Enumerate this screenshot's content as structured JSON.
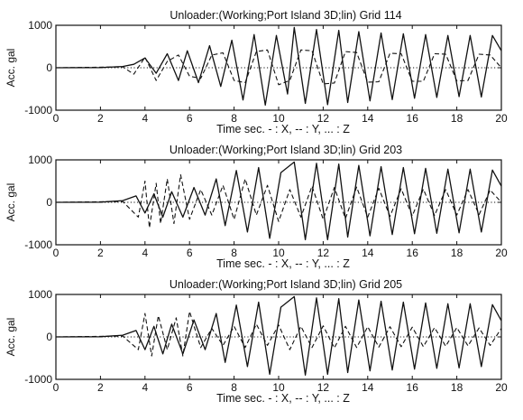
{
  "chart_data": [
    {
      "type": "line",
      "title": "Unloader:(Working;Port Island 3D;lin)   Grid 114",
      "xlabel": "Time  sec.  - : X, -- : Y, ... : Z",
      "ylabel": "Acc. gal",
      "xlim": [
        0,
        20
      ],
      "ylim": [
        -1000,
        1000
      ],
      "xticks": [
        "0",
        "2",
        "4",
        "6",
        "8",
        "10",
        "12",
        "14",
        "16",
        "18",
        "20"
      ],
      "yticks": [
        "1000",
        "0",
        "-1000"
      ],
      "grid": false,
      "series": [
        {
          "style": "solid",
          "x": [
            0,
            2,
            3,
            3.5,
            4,
            4.5,
            5,
            5.5,
            5.9,
            6.4,
            6.9,
            7.4,
            7.9,
            8.4,
            8.9,
            9.4,
            9.9,
            10.4,
            10.7,
            11.2,
            11.7,
            12.2,
            12.7,
            13.1,
            13.6,
            14.1,
            14.6,
            15.1,
            15.6,
            16.1,
            16.6,
            17.1,
            17.6,
            18.1,
            18.6,
            19.1,
            19.6,
            20
          ],
          "y": [
            0,
            5,
            30,
            80,
            230,
            -130,
            330,
            -300,
            400,
            -350,
            520,
            -440,
            650,
            -760,
            780,
            -880,
            760,
            -620,
            950,
            -840,
            900,
            -870,
            880,
            -820,
            850,
            -780,
            820,
            -750,
            800,
            -720,
            780,
            -700,
            760,
            -680,
            760,
            -690,
            760,
            400
          ]
        },
        {
          "style": "dashed",
          "x": [
            0,
            3,
            3.5,
            4,
            4.5,
            5,
            5.5,
            6,
            6.5,
            7,
            7.5,
            8,
            8.5,
            9,
            9.5,
            10,
            10.5,
            11,
            11.5,
            12,
            12.5,
            13,
            13.5,
            14,
            14.5,
            15,
            15.5,
            16,
            16.5,
            17,
            17.5,
            18,
            18.5,
            19,
            19.5,
            20
          ],
          "y": [
            0,
            20,
            -150,
            250,
            -300,
            150,
            300,
            -200,
            -250,
            300,
            350,
            -300,
            -350,
            380,
            420,
            -400,
            -300,
            420,
            400,
            -380,
            -360,
            380,
            360,
            -340,
            -330,
            340,
            330,
            -320,
            -320,
            330,
            320,
            -310,
            -300,
            320,
            300,
            0
          ]
        },
        {
          "style": "dotted",
          "x": [
            0,
            20
          ],
          "y": [
            0,
            0
          ]
        }
      ]
    },
    {
      "type": "line",
      "title": "Unloader:(Working;Port Island 3D;lin)   Grid 203",
      "xlabel": "Time  sec.  - : X, -- : Y, ... : Z",
      "ylabel": "Acc. gal",
      "xlim": [
        0,
        20
      ],
      "ylim": [
        -1000,
        1000
      ],
      "xticks": [
        "0",
        "2",
        "4",
        "6",
        "8",
        "10",
        "12",
        "14",
        "16",
        "18",
        "20"
      ],
      "yticks": [
        "1000",
        "0",
        "-1000"
      ],
      "grid": false,
      "series": [
        {
          "style": "solid",
          "x": [
            0,
            2,
            3,
            3.6,
            4,
            4.4,
            4.8,
            5.2,
            5.7,
            6.2,
            6.7,
            7.2,
            7.6,
            8.1,
            8.6,
            9.1,
            9.6,
            10.1,
            10.7,
            11.2,
            11.7,
            12.2,
            12.7,
            13.1,
            13.6,
            14.1,
            14.6,
            15.1,
            15.6,
            16.1,
            16.6,
            17.1,
            17.6,
            18.1,
            18.6,
            19.1,
            19.6,
            20
          ],
          "y": [
            0,
            5,
            40,
            150,
            -250,
            200,
            -350,
            250,
            -350,
            350,
            -300,
            550,
            -550,
            750,
            -700,
            820,
            -850,
            700,
            950,
            -880,
            920,
            -880,
            900,
            -820,
            870,
            -790,
            840,
            -760,
            820,
            -740,
            800,
            -730,
            780,
            -720,
            780,
            -700,
            760,
            380
          ]
        },
        {
          "style": "dashed",
          "x": [
            0,
            3,
            3.7,
            4,
            4.2,
            4.5,
            4.7,
            5,
            5.3,
            5.6,
            6,
            6.5,
            7,
            7.5,
            8,
            8.5,
            9,
            9.5,
            10,
            10.5,
            11,
            11.5,
            12,
            12.5,
            13,
            13.5,
            14,
            14.5,
            15,
            15.5,
            16,
            16.5,
            17,
            17.5,
            18,
            18.5,
            19,
            19.5,
            20
          ],
          "y": [
            0,
            20,
            -350,
            500,
            -600,
            450,
            -500,
            550,
            -500,
            650,
            -400,
            300,
            -300,
            400,
            -400,
            550,
            -300,
            400,
            -450,
            300,
            -350,
            380,
            -400,
            350,
            -380,
            360,
            -350,
            330,
            -330,
            320,
            -320,
            310,
            -310,
            300,
            -300,
            300,
            -290,
            290,
            0
          ]
        },
        {
          "style": "dotted",
          "x": [
            0,
            20
          ],
          "y": [
            0,
            0
          ]
        }
      ]
    },
    {
      "type": "line",
      "title": "Unloader:(Working;Port Island 3D;lin)   Grid 205",
      "xlabel": "Time  sec.  - : X, -- : Y, ... : Z",
      "ylabel": "Acc. gal",
      "xlim": [
        0,
        20
      ],
      "ylim": [
        -1000,
        1000
      ],
      "xticks": [
        "0",
        "2",
        "4",
        "6",
        "8",
        "10",
        "12",
        "14",
        "16",
        "18",
        "20"
      ],
      "yticks": [
        "1000",
        "0",
        "-1000"
      ],
      "grid": false,
      "series": [
        {
          "style": "solid",
          "x": [
            0,
            2,
            3,
            3.6,
            4,
            4.4,
            4.8,
            5.2,
            5.7,
            6.2,
            6.7,
            7.2,
            7.6,
            8.1,
            8.6,
            9.1,
            9.6,
            10.1,
            10.7,
            11.2,
            11.7,
            12.2,
            12.7,
            13.1,
            13.6,
            14.1,
            14.6,
            15.1,
            15.6,
            16.1,
            16.6,
            17.1,
            17.6,
            18.1,
            18.6,
            19.1,
            19.6,
            20
          ],
          "y": [
            0,
            5,
            40,
            150,
            -300,
            250,
            -400,
            300,
            -400,
            400,
            -300,
            550,
            -600,
            750,
            -700,
            820,
            -880,
            700,
            950,
            -900,
            920,
            -880,
            900,
            -840,
            870,
            -800,
            840,
            -780,
            820,
            -760,
            800,
            -740,
            780,
            -730,
            780,
            -700,
            760,
            380
          ]
        },
        {
          "style": "dashed",
          "x": [
            0,
            3,
            3.7,
            4,
            4.3,
            4.6,
            5,
            5.4,
            5.7,
            6,
            6.5,
            7,
            7.5,
            8,
            8.5,
            9,
            9.5,
            10,
            10.5,
            11,
            11.5,
            12,
            12.5,
            13,
            13.5,
            14,
            14.5,
            15,
            15.5,
            16,
            16.5,
            17,
            17.5,
            18,
            18.5,
            19,
            19.5,
            20
          ],
          "y": [
            0,
            20,
            -300,
            550,
            -450,
            500,
            -300,
            450,
            -450,
            600,
            -250,
            200,
            -200,
            250,
            -250,
            300,
            -200,
            280,
            -300,
            250,
            -250,
            260,
            -260,
            250,
            -250,
            240,
            -240,
            240,
            -230,
            230,
            -230,
            220,
            -220,
            220,
            -210,
            210,
            -200,
            200
          ]
        },
        {
          "style": "dotted",
          "x": [
            0,
            20
          ],
          "y": [
            0,
            0
          ]
        }
      ]
    }
  ]
}
